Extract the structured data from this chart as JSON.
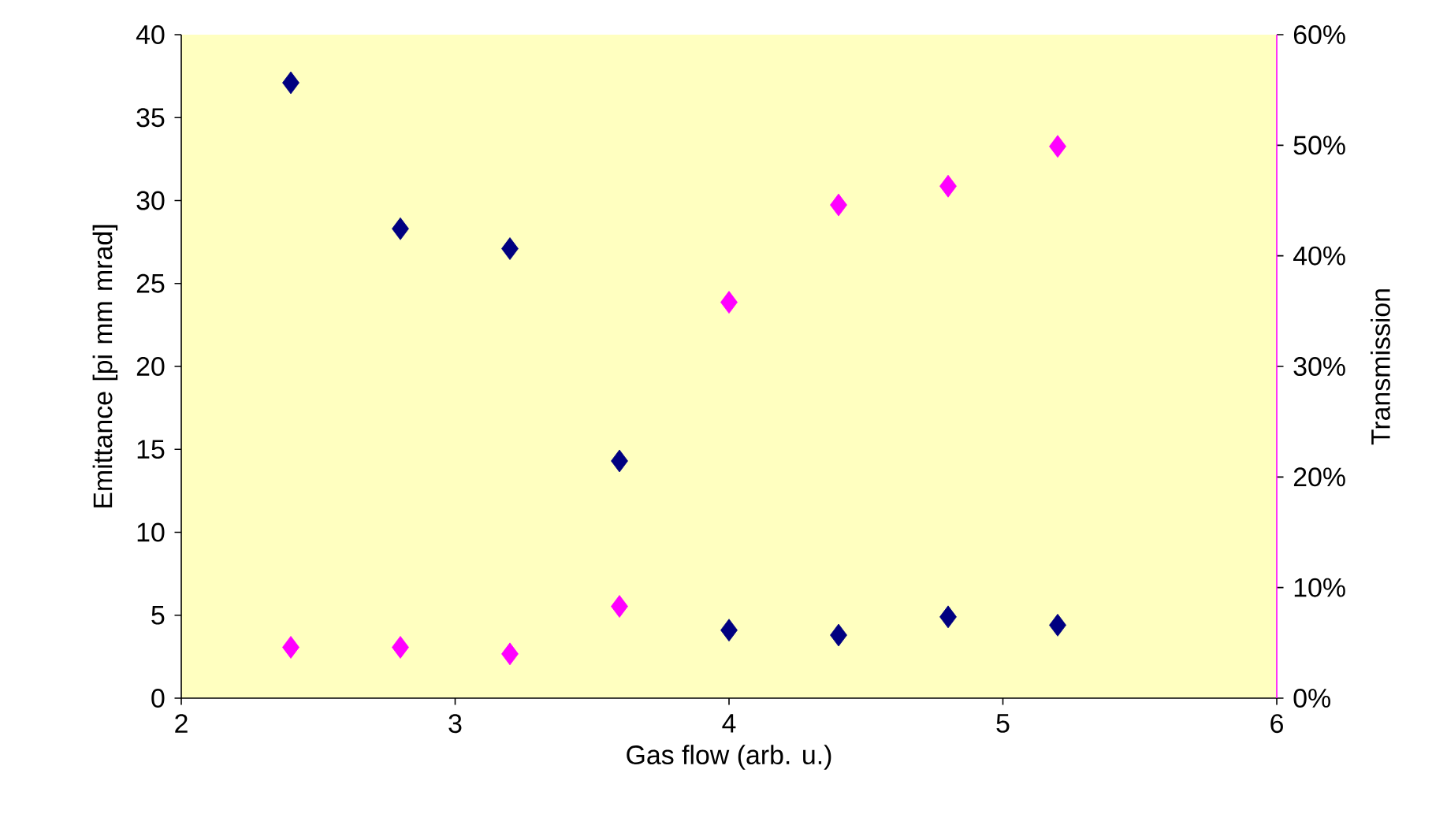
{
  "chart_data": {
    "type": "scatter",
    "xlabel": "Gas flow (arb. u.)",
    "ylabel": "Emittance [pi mm mrad]",
    "y2label": "Transmission",
    "marker": "diamond",
    "xlim": [
      2,
      6
    ],
    "xticks": [
      2,
      3,
      4,
      5,
      6
    ],
    "ylim": [
      0,
      40
    ],
    "yticks": [
      0,
      5,
      10,
      15,
      20,
      25,
      30,
      35,
      40
    ],
    "y2lim": [
      0,
      60
    ],
    "y2ticks": [
      {
        "value": 0,
        "label": "0%"
      },
      {
        "value": 10,
        "label": "10%"
      },
      {
        "value": 20,
        "label": "20%"
      },
      {
        "value": 30,
        "label": "30%"
      },
      {
        "value": 40,
        "label": "40%"
      },
      {
        "value": 50,
        "label": "50%"
      },
      {
        "value": 60,
        "label": "60%"
      }
    ],
    "x": [
      2.4,
      2.8,
      3.2,
      3.6,
      4.0,
      4.4,
      4.8,
      5.2
    ],
    "series": [
      {
        "color": "#000080",
        "values": [
          37.1,
          28.3,
          27.1,
          14.3,
          4.1,
          3.8,
          4.9,
          4.4
        ]
      },
      {
        "color": "#ff00ff",
        "axis": "y2",
        "values": [
          4.6,
          4.6,
          4.0,
          8.3,
          35.8,
          44.6,
          46.3,
          49.9
        ]
      }
    ]
  }
}
